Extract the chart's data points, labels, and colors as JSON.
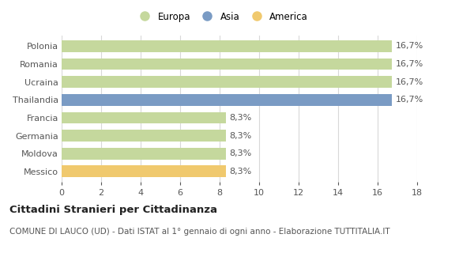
{
  "categories": [
    "Polonia",
    "Romania",
    "Ucraina",
    "Thailandia",
    "Francia",
    "Germania",
    "Moldova",
    "Messico"
  ],
  "values": [
    16.7,
    16.7,
    16.7,
    16.7,
    8.3,
    8.3,
    8.3,
    8.3
  ],
  "bar_colors": [
    "#c5d89d",
    "#c5d89d",
    "#c5d89d",
    "#7a9bc4",
    "#c5d89d",
    "#c5d89d",
    "#c5d89d",
    "#f0c96e"
  ],
  "labels": [
    "16,7%",
    "16,7%",
    "16,7%",
    "16,7%",
    "8,3%",
    "8,3%",
    "8,3%",
    "8,3%"
  ],
  "xlim": [
    0,
    18
  ],
  "xticks": [
    0,
    2,
    4,
    6,
    8,
    10,
    12,
    14,
    16,
    18
  ],
  "legend_labels": [
    "Europa",
    "Asia",
    "America"
  ],
  "legend_colors": [
    "#c5d89d",
    "#7a9bc4",
    "#f0c96e"
  ],
  "title": "Cittadini Stranieri per Cittadinanza",
  "subtitle": "COMUNE DI LAUCO (UD) - Dati ISTAT al 1° gennaio di ogni anno - Elaborazione TUTTITALIA.IT",
  "bg_color": "#ffffff",
  "plot_bg_color": "#ffffff",
  "grid_color": "#d8d8d8",
  "bar_label_color": "#555555",
  "tick_label_color": "#555555",
  "label_fontsize": 8.0,
  "title_fontsize": 9.5,
  "subtitle_fontsize": 7.5,
  "bar_height": 0.65
}
